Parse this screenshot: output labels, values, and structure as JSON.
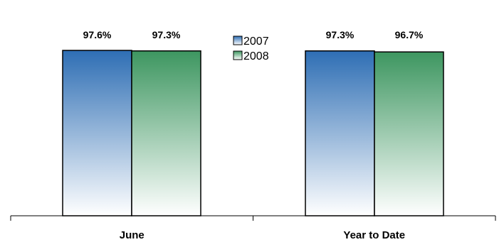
{
  "chart_data": {
    "type": "bar",
    "title": "",
    "xlabel": "",
    "ylabel": "",
    "categories": [
      "June",
      "Year to Date"
    ],
    "series": [
      {
        "name": "2007",
        "values": [
          97.6,
          97.3
        ],
        "labels": [
          "97.6%",
          "97.3%"
        ],
        "color_top": "#2e6eb4",
        "color_bottom": "#ffffff"
      },
      {
        "name": "2008",
        "values": [
          97.3,
          96.7
        ],
        "labels": [
          "97.3%",
          "96.7%"
        ],
        "color_top": "#3d9660",
        "color_bottom": "#ffffff"
      }
    ],
    "legend": "top-center",
    "grid": false,
    "value_axis_visible": false
  }
}
